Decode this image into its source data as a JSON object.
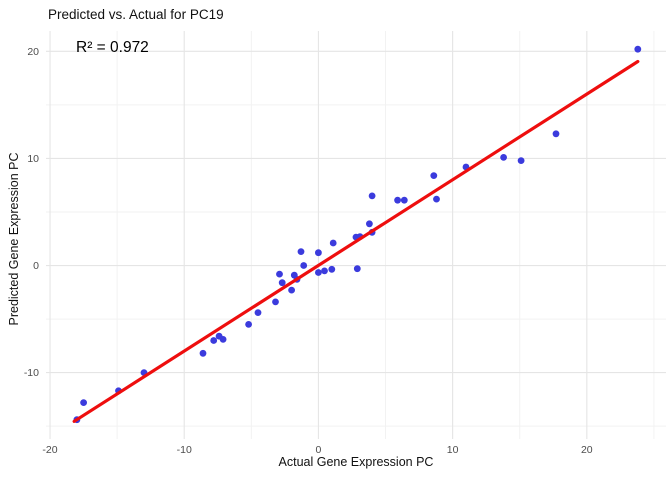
{
  "title": "Predicted vs. Actual for PC19",
  "chart_data": {
    "type": "scatter",
    "title": "Predicted vs. Actual for PC19",
    "annotation": {
      "text": "R² = 0.972"
    },
    "xlabel": "Actual Gene Expression PC",
    "ylabel": "Predicted Gene Expression PC",
    "xlim": [
      -20.3,
      25.9
    ],
    "ylim": [
      -16.2,
      21.9
    ],
    "x_ticks": [
      -20,
      -10,
      0,
      10,
      20
    ],
    "y_ticks": [
      -10,
      0,
      10,
      20
    ],
    "x_minor_ticks": [
      -15,
      -5,
      5,
      15,
      25
    ],
    "y_minor_ticks": [
      -15,
      -5,
      5,
      15
    ],
    "grid": "major+minor",
    "legend": "none",
    "point_color": "#3b3bdd",
    "line_color": "#ee0e0e",
    "major_grid_color": "#e5e5e5",
    "minor_grid_color": "#f2f2f2",
    "tick_label_color": "#4d4d4d",
    "points": [
      [
        -18.0,
        -14.4
      ],
      [
        -17.5,
        -12.8
      ],
      [
        -14.9,
        -11.7
      ],
      [
        -13.0,
        -10.0
      ],
      [
        -8.6,
        -8.2
      ],
      [
        -7.8,
        -7.0
      ],
      [
        -7.4,
        -6.6
      ],
      [
        -7.1,
        -6.9
      ],
      [
        -5.2,
        -5.5
      ],
      [
        -4.5,
        -4.4
      ],
      [
        -3.2,
        -3.4
      ],
      [
        -2.9,
        -0.8
      ],
      [
        -2.7,
        -1.6
      ],
      [
        -2.0,
        -2.3
      ],
      [
        -1.8,
        -0.9
      ],
      [
        -1.6,
        -1.3
      ],
      [
        -1.3,
        1.3
      ],
      [
        -1.1,
        0.0
      ],
      [
        0.0,
        1.2
      ],
      [
        0.0,
        -0.65
      ],
      [
        0.45,
        -0.5
      ],
      [
        1.0,
        -0.35
      ],
      [
        1.1,
        2.1
      ],
      [
        2.8,
        2.65
      ],
      [
        3.1,
        2.7
      ],
      [
        2.9,
        -0.3
      ],
      [
        3.8,
        3.9
      ],
      [
        4.0,
        3.1
      ],
      [
        4.0,
        6.5
      ],
      [
        5.9,
        6.1
      ],
      [
        6.4,
        6.1
      ],
      [
        8.6,
        8.4
      ],
      [
        8.8,
        6.2
      ],
      [
        11.0,
        9.2
      ],
      [
        13.8,
        10.1
      ],
      [
        15.1,
        9.8
      ],
      [
        17.7,
        12.3
      ],
      [
        23.8,
        20.2
      ]
    ],
    "regression_line": {
      "x1": -18.2,
      "y1": -14.55,
      "x2": 23.8,
      "y2": 19.05
    }
  }
}
